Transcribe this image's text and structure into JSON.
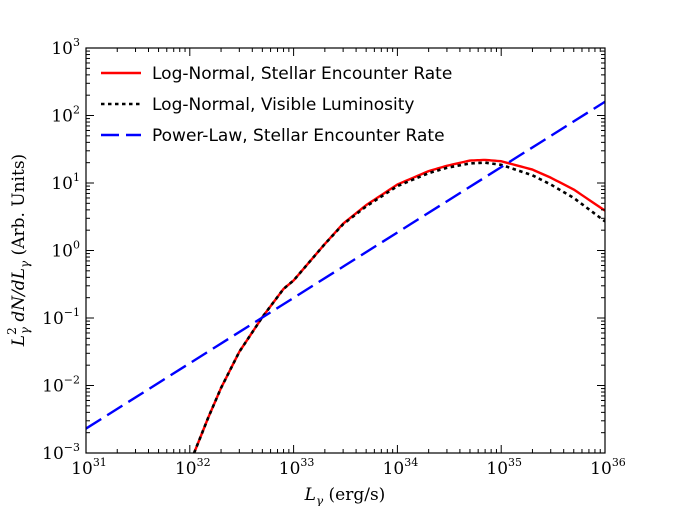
{
  "chart_data": {
    "type": "line",
    "xscale": "log",
    "yscale": "log",
    "xlim": [
      1e+31,
      1e+36
    ],
    "ylim": [
      0.001,
      1000
    ],
    "xlabel_var": "L",
    "xlabel_sub": "γ",
    "xlabel_units": " (erg/s)",
    "ylabel": "L²γ dN/dLγ (Arb. Units)",
    "ylabel_parts": {
      "var": "L",
      "sup": "2",
      "sub": "γ",
      "mid": " dN/dL",
      "sub2": "γ",
      "units": " (Arb. Units)"
    },
    "x_ticks": [
      {
        "base": "10",
        "exp": "31",
        "value": 1e+31
      },
      {
        "base": "10",
        "exp": "32",
        "value": 1e+32
      },
      {
        "base": "10",
        "exp": "33",
        "value": 1e+33
      },
      {
        "base": "10",
        "exp": "34",
        "value": 1e+34
      },
      {
        "base": "10",
        "exp": "35",
        "value": 1e+35
      },
      {
        "base": "10",
        "exp": "36",
        "value": 1e+36
      }
    ],
    "y_ticks": [
      {
        "base": "10",
        "exp": "−3",
        "value": 0.001
      },
      {
        "base": "10",
        "exp": "−2",
        "value": 0.01
      },
      {
        "base": "10",
        "exp": "−1",
        "value": 0.1
      },
      {
        "base": "10",
        "exp": "0",
        "value": 1
      },
      {
        "base": "10",
        "exp": "1",
        "value": 10
      },
      {
        "base": "10",
        "exp": "2",
        "value": 100
      },
      {
        "base": "10",
        "exp": "3",
        "value": 1000
      }
    ],
    "legend_position": "top-left",
    "series": [
      {
        "name": "Log-Normal, Stellar Encounter Rate",
        "color": "#ff0000",
        "style": "solid",
        "x": [
          1.1e+32,
          1.5e+32,
          2e+32,
          3e+32,
          5e+32,
          8e+32,
          1e+33,
          2e+33,
          3e+33,
          5e+33,
          1e+34,
          2e+34,
          3e+34,
          5e+34,
          7e+34,
          1e+35,
          2e+35,
          3e+35,
          5e+35,
          1e+36
        ],
        "y": [
          0.001,
          0.0033,
          0.0092,
          0.0316,
          0.103,
          0.27,
          0.36,
          1.25,
          2.5,
          4.7,
          9.5,
          15,
          18,
          21.5,
          22,
          21,
          15.8,
          12,
          8,
          3.9
        ]
      },
      {
        "name": "Log-Normal, Visible Luminosity",
        "color": "#000000",
        "style": "dotted",
        "x": [
          1.1e+32,
          1.5e+32,
          2e+32,
          3e+32,
          5e+32,
          8e+32,
          1e+33,
          2e+33,
          3e+33,
          5e+33,
          1e+34,
          2e+34,
          3e+34,
          5e+34,
          7e+34,
          1e+35,
          2e+35,
          3e+35,
          5e+35,
          1e+36
        ],
        "y": [
          0.001,
          0.0033,
          0.0092,
          0.0316,
          0.103,
          0.27,
          0.36,
          1.25,
          2.45,
          4.5,
          9,
          14,
          16.8,
          19.5,
          20,
          18.6,
          13,
          9.5,
          6,
          2.7
        ]
      },
      {
        "name": "Power-Law, Stellar Encounter Rate",
        "color": "#0000ff",
        "style": "dashed",
        "x": [
          1e+31,
          1e+36
        ],
        "y": [
          0.0023,
          160
        ]
      }
    ]
  }
}
